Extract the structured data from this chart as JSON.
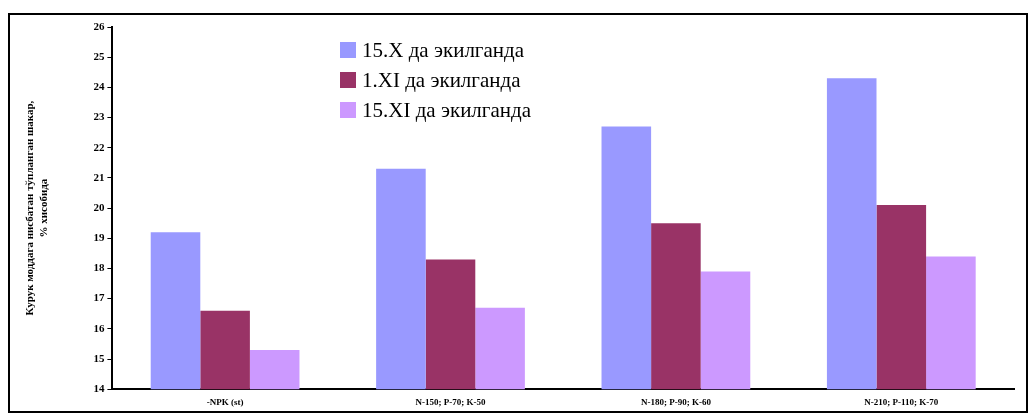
{
  "chart_data": {
    "type": "bar",
    "ylabel": "Курук моддага нисбатан тўпланган шакар,\n% хисобида",
    "categories": [
      "-NPK (st)",
      "N-150; P-70; K-50",
      "N-180; P-90; K-60",
      "N-210; P-110; K-70"
    ],
    "series": [
      {
        "name": "15.X да экилганда",
        "color": "#9999ff",
        "values": [
          19.2,
          21.3,
          22.7,
          24.3
        ]
      },
      {
        "name": "1.XI да экилганда",
        "color": "#993366",
        "values": [
          16.6,
          18.3,
          19.5,
          20.1
        ]
      },
      {
        "name": "15.XI да экилганда",
        "color": "#cc99ff",
        "values": [
          15.3,
          16.7,
          17.9,
          18.4
        ]
      }
    ],
    "ylim": [
      14,
      26
    ],
    "yticks": [
      14,
      15,
      16,
      17,
      18,
      19,
      20,
      21,
      22,
      23,
      24,
      25,
      26
    ],
    "grid": false,
    "legend": "top left"
  }
}
